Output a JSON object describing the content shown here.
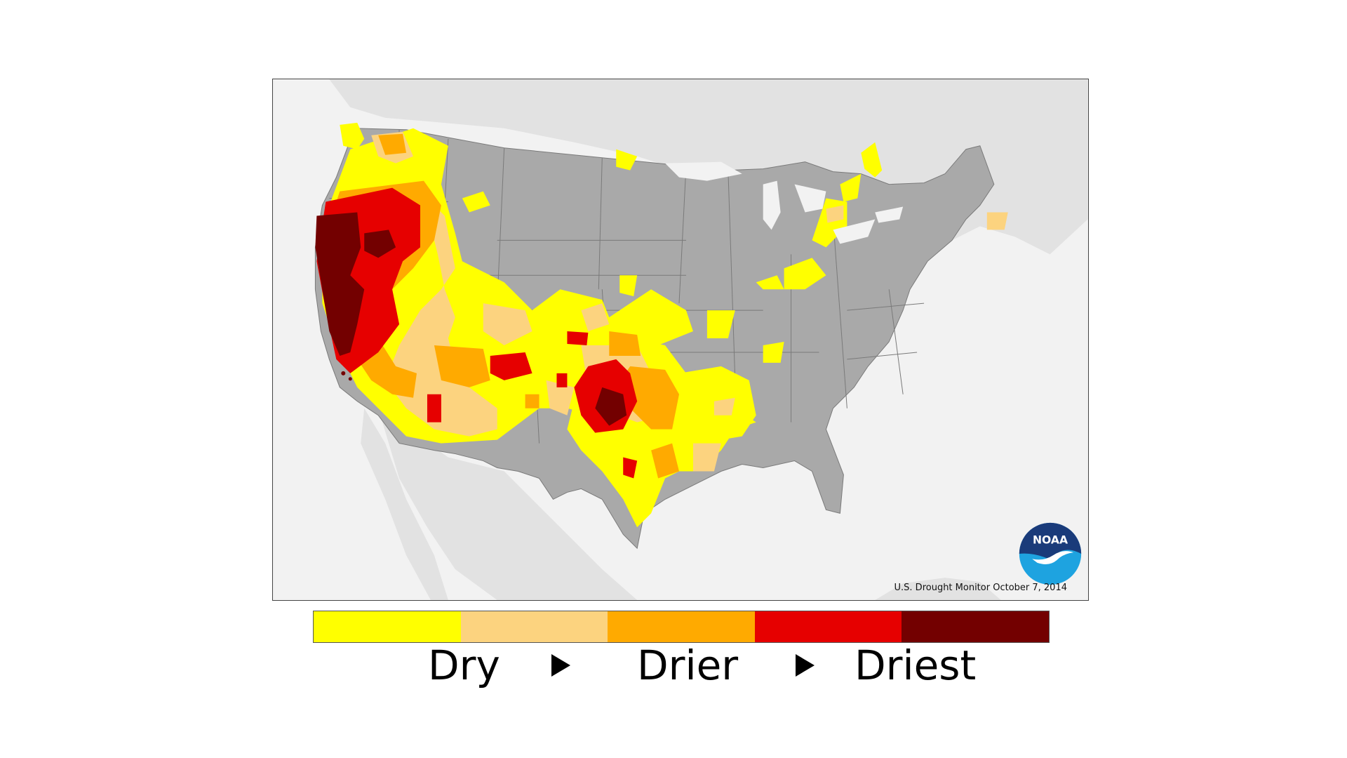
{
  "map": {
    "credit": "U.S. Drought Monitor October 7, 2014",
    "logo": {
      "text": "NOAA",
      "icon": "noaa-logo-icon"
    },
    "colors": {
      "background": "#f2f2f2",
      "landmass": "#e2e2e2",
      "no_drought": "#a9a9a9",
      "state_borders": "#7a7a7a"
    }
  },
  "legend": {
    "colors": [
      "#ffff00",
      "#fcd37f",
      "#ffaa00",
      "#e60000",
      "#730000"
    ],
    "labels": {
      "dry": "Dry",
      "drier": "Drier",
      "driest": "Driest"
    },
    "arrow_icon": "right-triangle-icon"
  }
}
